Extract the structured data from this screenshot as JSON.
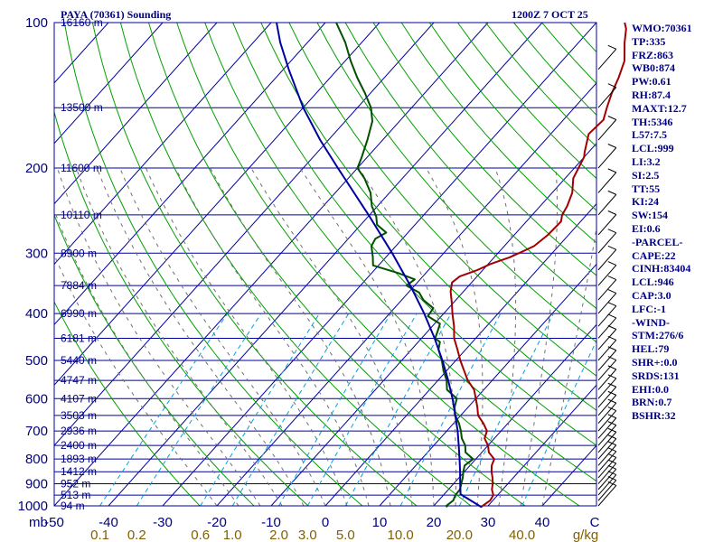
{
  "chart_data": {
    "type": "line",
    "title": "PAYA (70361) Sounding",
    "valid_time": "1200Z  7 OCT 25",
    "pressure_unit": "mb",
    "mixing_ratio_unit": "g/kg",
    "pressure_ticks": [
      100,
      200,
      300,
      400,
      500,
      600,
      700,
      800,
      900,
      1000
    ],
    "pressure_range": [
      100,
      1000
    ],
    "temperature_ticks": [
      -50,
      -40,
      -30,
      -20,
      -10,
      0,
      10,
      20,
      30,
      40
    ],
    "temperature_range": [
      -50,
      50
    ],
    "temperature_ticks_end_label": "C",
    "mixing_ratio_labels": [
      "0.1",
      "0.2",
      "0.6",
      "1.0",
      "2.0",
      "3.0",
      "5.0",
      "10.0",
      "20.0",
      "40.0"
    ],
    "height_labels": [
      {
        "p": 100,
        "label": "16160 m"
      },
      {
        "p": 150,
        "label": "13500 m"
      },
      {
        "p": 200,
        "label": "11600 m"
      },
      {
        "p": 250,
        "label": "10110 m"
      },
      {
        "p": 300,
        "label": "8900 m"
      },
      {
        "p": 350,
        "label": "7884 m"
      },
      {
        "p": 400,
        "label": "6990 m"
      },
      {
        "p": 450,
        "label": "6181 m"
      },
      {
        "p": 500,
        "label": "5440 m"
      },
      {
        "p": 550,
        "label": "4747 m"
      },
      {
        "p": 600,
        "label": "4107 m"
      },
      {
        "p": 650,
        "label": "3503 m"
      },
      {
        "p": 700,
        "label": "2936 m"
      },
      {
        "p": 750,
        "label": "2400 m"
      },
      {
        "p": 800,
        "label": "1893 m"
      },
      {
        "p": 850,
        "label": "1412 m"
      },
      {
        "p": 900,
        "label": "952 m"
      },
      {
        "p": 950,
        "label": "513 m"
      },
      {
        "p": 1000,
        "label": "94 m"
      }
    ],
    "series": [
      {
        "name": "Temperature",
        "color": "#a00000",
        "points": [
          [
            1006,
            28.9
          ],
          [
            1000,
            29.0
          ],
          [
            975,
            29.5
          ],
          [
            950,
            29.2
          ],
          [
            925,
            28.0
          ],
          [
            900,
            27.2
          ],
          [
            875,
            26.2
          ],
          [
            850,
            25.0
          ],
          [
            825,
            24.0
          ],
          [
            800,
            23.4
          ],
          [
            775,
            21.3
          ],
          [
            750,
            20.0
          ],
          [
            725,
            18.2
          ],
          [
            700,
            17.4
          ],
          [
            675,
            15.5
          ],
          [
            650,
            13.2
          ],
          [
            625,
            11.7
          ],
          [
            600,
            10.0
          ],
          [
            575,
            8.2
          ],
          [
            550,
            5.5
          ],
          [
            525,
            3.2
          ],
          [
            500,
            0.8
          ],
          [
            475,
            -1.5
          ],
          [
            450,
            -4.0
          ],
          [
            425,
            -6.0
          ],
          [
            400,
            -8.4
          ],
          [
            380,
            -10.3
          ],
          [
            360,
            -12.4
          ],
          [
            345,
            -13.6
          ],
          [
            335,
            -13.2
          ],
          [
            325,
            -11.0
          ],
          [
            316,
            -9.6
          ],
          [
            306,
            -7.2
          ],
          [
            298,
            -5.8
          ],
          [
            290,
            -4.5
          ],
          [
            275,
            -3.8
          ],
          [
            258,
            -3.6
          ],
          [
            250,
            -4.5
          ],
          [
            240,
            -5.0
          ],
          [
            225,
            -6.3
          ],
          [
            210,
            -8.5
          ],
          [
            190,
            -10.0
          ],
          [
            185,
            -10.8
          ],
          [
            170,
            -13.0
          ],
          [
            159,
            -12.6
          ],
          [
            150,
            -14.0
          ],
          [
            140,
            -15.5
          ],
          [
            130,
            -16.8
          ],
          [
            120,
            -18.5
          ],
          [
            110,
            -21.5
          ],
          [
            103,
            -23.5
          ],
          [
            100,
            -24.8
          ]
        ]
      },
      {
        "name": "Dewpoint",
        "color": "#005000",
        "points": [
          [
            1006,
            22.7
          ],
          [
            1000,
            22.3
          ],
          [
            975,
            22.7
          ],
          [
            950,
            22.2
          ],
          [
            925,
            22.1
          ],
          [
            900,
            21.4
          ],
          [
            875,
            20.7
          ],
          [
            850,
            19.8
          ],
          [
            825,
            19.0
          ],
          [
            800,
            19.5
          ],
          [
            775,
            17.0
          ],
          [
            750,
            15.8
          ],
          [
            725,
            14.0
          ],
          [
            700,
            12.6
          ],
          [
            675,
            11.0
          ],
          [
            650,
            9.0
          ],
          [
            625,
            7.5
          ],
          [
            600,
            6.5
          ],
          [
            575,
            3.2
          ],
          [
            550,
            1.6
          ],
          [
            525,
            -0.6
          ],
          [
            500,
            -2.6
          ],
          [
            475,
            -5.0
          ],
          [
            458,
            -6.0
          ],
          [
            450,
            -7.5
          ],
          [
            435,
            -8.2
          ],
          [
            420,
            -9.0
          ],
          [
            405,
            -12.5
          ],
          [
            390,
            -12.8
          ],
          [
            375,
            -16.0
          ],
          [
            362,
            -18.0
          ],
          [
            350,
            -21.5
          ],
          [
            340,
            -21.0
          ],
          [
            330,
            -25.0
          ],
          [
            318,
            -31.0
          ],
          [
            305,
            -32.5
          ],
          [
            290,
            -34.5
          ],
          [
            280,
            -35.0
          ],
          [
            272,
            -34.0
          ],
          [
            262,
            -37.0
          ],
          [
            252,
            -38.5
          ],
          [
            240,
            -41.0
          ],
          [
            225,
            -43.5
          ],
          [
            210,
            -47.0
          ],
          [
            200,
            -50.0
          ],
          [
            190,
            -51.0
          ],
          [
            175,
            -52.8
          ],
          [
            160,
            -55.0
          ],
          [
            150,
            -57.5
          ],
          [
            140,
            -61.0
          ],
          [
            130,
            -65.0
          ],
          [
            120,
            -69.0
          ],
          [
            110,
            -73.0
          ],
          [
            100,
            -78.0
          ]
        ]
      },
      {
        "name": "Parcel",
        "color": "#0000a0",
        "points": [
          [
            1006,
            29.0
          ],
          [
            946,
            23.0
          ],
          [
            900,
            21.2
          ],
          [
            850,
            19.2
          ],
          [
            800,
            17.0
          ],
          [
            750,
            14.6
          ],
          [
            700,
            12.0
          ],
          [
            650,
            9.0
          ],
          [
            600,
            5.7
          ],
          [
            550,
            1.9
          ],
          [
            500,
            -2.5
          ],
          [
            450,
            -7.6
          ],
          [
            400,
            -13.6
          ],
          [
            350,
            -20.8
          ],
          [
            300,
            -29.5
          ],
          [
            250,
            -40.2
          ],
          [
            200,
            -53.6
          ],
          [
            175,
            -61.5
          ],
          [
            150,
            -70.0
          ],
          [
            125,
            -79.0
          ],
          [
            110,
            -85.0
          ],
          [
            100,
            -89.0
          ]
        ]
      }
    ],
    "wind_barbs_side": "right",
    "annotations": []
  },
  "indices": [
    "WMO:70361",
    "TP:335",
    "FRZ:863",
    "WB0:874",
    "PW:0.61",
    "RH:87.4",
    "MAXT:12.7",
    "TH:5346",
    "L57:7.5",
    "LCL:999",
    "LI:3.2",
    "SI:2.5",
    "TT:55",
    "KI:24",
    "SW:154",
    "EI:0.6",
    "-PARCEL-",
    "CAPE:22",
    "CINH:83404",
    "LCL:946",
    "CAP:3.0",
    "LFC:-1",
    "-WIND-",
    "STM:276/6",
    "HEL:79",
    "SHR+:0.0",
    "SRDS:131",
    "EHI:0.0",
    "BRN:0.7",
    "BSHR:32"
  ],
  "colors": {
    "isobar": "#0000a0",
    "isotherm": "#0000a0",
    "dry_adiabat": "#00a000",
    "moist_adiabat": "#707070",
    "mixing_ratio": "#00a0e0",
    "text": "#000080",
    "mixing_ratio_label": "#806000",
    "wind_barb": "#000000"
  }
}
